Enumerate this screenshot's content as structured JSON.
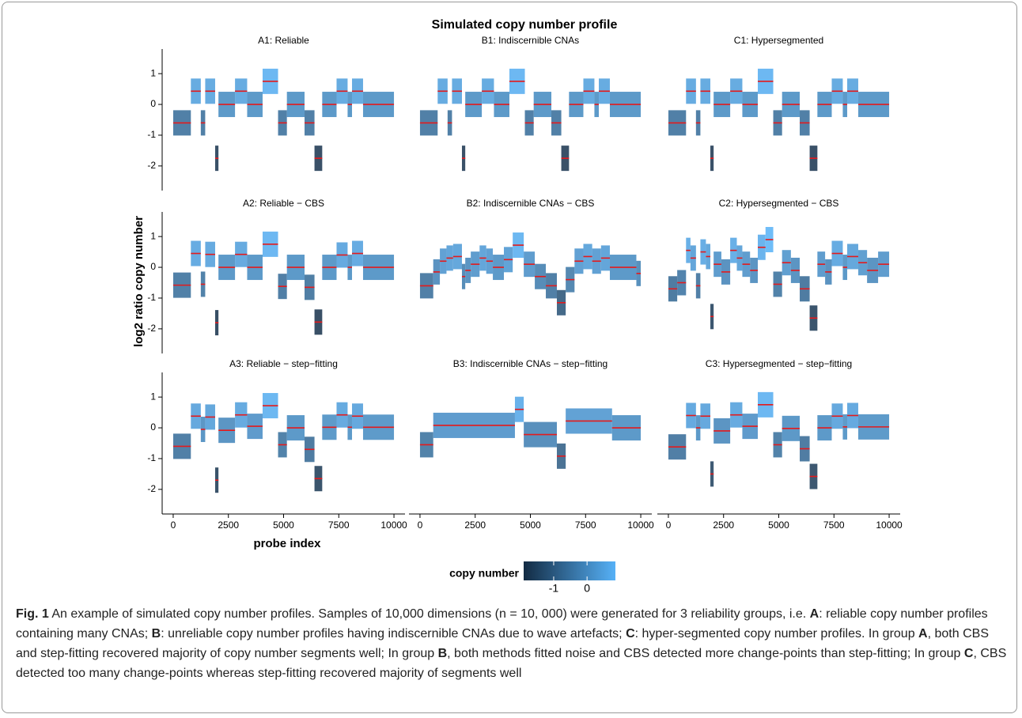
{
  "chart_data": {
    "type": "segments",
    "title": "Simulated copy number profile",
    "x_label": "probe index",
    "y_label": "log2 ratio copy number",
    "xlim": [
      -500,
      10500
    ],
    "xticks": [
      0,
      2500,
      5000,
      7500,
      10000
    ],
    "ylim": [
      -2.8,
      1.8
    ],
    "yticks": [
      -2,
      -1,
      0,
      1
    ],
    "segment_color": "#e41a1c",
    "colorbar": {
      "label": "copy number",
      "lim": [
        -1.9,
        0.85
      ],
      "ticks": [
        -1,
        0
      ],
      "colors": [
        "#132b43",
        "#56b1f7"
      ]
    },
    "panels": [
      {
        "title": "A1: Reliable",
        "segments": [
          {
            "x0": 0,
            "x1": 800,
            "y": -0.6
          },
          {
            "x0": 800,
            "x1": 1250,
            "y": 0.43
          },
          {
            "x0": 1250,
            "x1": 1450,
            "y": -0.6
          },
          {
            "x0": 1450,
            "x1": 1900,
            "y": 0.43
          },
          {
            "x0": 1900,
            "x1": 2050,
            "y": -1.75
          },
          {
            "x0": 2050,
            "x1": 2800,
            "y": 0
          },
          {
            "x0": 2800,
            "x1": 3350,
            "y": 0.43
          },
          {
            "x0": 3350,
            "x1": 4050,
            "y": 0
          },
          {
            "x0": 4050,
            "x1": 4750,
            "y": 0.75
          },
          {
            "x0": 4750,
            "x1": 5150,
            "y": -0.6
          },
          {
            "x0": 5150,
            "x1": 5950,
            "y": 0
          },
          {
            "x0": 5950,
            "x1": 6400,
            "y": -0.6
          },
          {
            "x0": 6400,
            "x1": 6750,
            "y": -1.75
          },
          {
            "x0": 6750,
            "x1": 7400,
            "y": 0
          },
          {
            "x0": 7400,
            "x1": 7900,
            "y": 0.43
          },
          {
            "x0": 7900,
            "x1": 8100,
            "y": 0
          },
          {
            "x0": 8100,
            "x1": 8600,
            "y": 0.43
          },
          {
            "x0": 8600,
            "x1": 10000,
            "y": 0
          }
        ]
      },
      {
        "title": "B1: Indiscernible CNAs",
        "segments": [
          {
            "x0": 0,
            "x1": 800,
            "y": -0.6
          },
          {
            "x0": 800,
            "x1": 1250,
            "y": 0.43
          },
          {
            "x0": 1250,
            "x1": 1450,
            "y": -0.6
          },
          {
            "x0": 1450,
            "x1": 1900,
            "y": 0.43
          },
          {
            "x0": 1900,
            "x1": 2050,
            "y": -1.75
          },
          {
            "x0": 2050,
            "x1": 2800,
            "y": 0
          },
          {
            "x0": 2800,
            "x1": 3350,
            "y": 0.43
          },
          {
            "x0": 3350,
            "x1": 4050,
            "y": 0
          },
          {
            "x0": 4050,
            "x1": 4750,
            "y": 0.75
          },
          {
            "x0": 4750,
            "x1": 5150,
            "y": -0.6
          },
          {
            "x0": 5150,
            "x1": 5950,
            "y": 0
          },
          {
            "x0": 5950,
            "x1": 6400,
            "y": -0.6
          },
          {
            "x0": 6400,
            "x1": 6750,
            "y": -1.75
          },
          {
            "x0": 6750,
            "x1": 7400,
            "y": 0
          },
          {
            "x0": 7400,
            "x1": 7900,
            "y": 0.43
          },
          {
            "x0": 7900,
            "x1": 8100,
            "y": 0
          },
          {
            "x0": 8100,
            "x1": 8600,
            "y": 0.43
          },
          {
            "x0": 8600,
            "x1": 10000,
            "y": 0
          }
        ]
      },
      {
        "title": "C1: Hypersegmented",
        "segments": [
          {
            "x0": 0,
            "x1": 800,
            "y": -0.6
          },
          {
            "x0": 800,
            "x1": 1250,
            "y": 0.43
          },
          {
            "x0": 1250,
            "x1": 1450,
            "y": -0.6
          },
          {
            "x0": 1450,
            "x1": 1900,
            "y": 0.43
          },
          {
            "x0": 1900,
            "x1": 2050,
            "y": -1.75
          },
          {
            "x0": 2050,
            "x1": 2800,
            "y": 0
          },
          {
            "x0": 2800,
            "x1": 3350,
            "y": 0.43
          },
          {
            "x0": 3350,
            "x1": 4050,
            "y": 0
          },
          {
            "x0": 4050,
            "x1": 4750,
            "y": 0.75
          },
          {
            "x0": 4750,
            "x1": 5150,
            "y": -0.6
          },
          {
            "x0": 5150,
            "x1": 5950,
            "y": 0
          },
          {
            "x0": 5950,
            "x1": 6400,
            "y": -0.6
          },
          {
            "x0": 6400,
            "x1": 6750,
            "y": -1.75
          },
          {
            "x0": 6750,
            "x1": 7400,
            "y": 0
          },
          {
            "x0": 7400,
            "x1": 7900,
            "y": 0.43
          },
          {
            "x0": 7900,
            "x1": 8100,
            "y": 0
          },
          {
            "x0": 8100,
            "x1": 8600,
            "y": 0.43
          },
          {
            "x0": 8600,
            "x1": 10000,
            "y": 0
          }
        ]
      },
      {
        "title": "A2: Reliable − CBS",
        "segments": [
          {
            "x0": 0,
            "x1": 800,
            "y": -0.58
          },
          {
            "x0": 800,
            "x1": 1250,
            "y": 0.45
          },
          {
            "x0": 1250,
            "x1": 1450,
            "y": -0.55
          },
          {
            "x0": 1450,
            "x1": 1900,
            "y": 0.42
          },
          {
            "x0": 1900,
            "x1": 2050,
            "y": -1.8
          },
          {
            "x0": 2050,
            "x1": 2800,
            "y": 0
          },
          {
            "x0": 2800,
            "x1": 3350,
            "y": 0.42
          },
          {
            "x0": 3350,
            "x1": 4050,
            "y": 0
          },
          {
            "x0": 4050,
            "x1": 4750,
            "y": 0.75
          },
          {
            "x0": 4750,
            "x1": 5150,
            "y": -0.62
          },
          {
            "x0": 5150,
            "x1": 5950,
            "y": 0
          },
          {
            "x0": 5950,
            "x1": 6400,
            "y": -0.65
          },
          {
            "x0": 6400,
            "x1": 6750,
            "y": -1.78
          },
          {
            "x0": 6750,
            "x1": 7400,
            "y": 0
          },
          {
            "x0": 7400,
            "x1": 7900,
            "y": 0.4
          },
          {
            "x0": 7900,
            "x1": 8100,
            "y": 0
          },
          {
            "x0": 8100,
            "x1": 8600,
            "y": 0.45
          },
          {
            "x0": 8600,
            "x1": 10000,
            "y": 0
          }
        ]
      },
      {
        "title": "B2: Indiscernible CNAs − CBS",
        "segments": [
          {
            "x0": 0,
            "x1": 600,
            "y": -0.6
          },
          {
            "x0": 600,
            "x1": 900,
            "y": -0.15
          },
          {
            "x0": 900,
            "x1": 1200,
            "y": 0.2
          },
          {
            "x0": 1200,
            "x1": 1500,
            "y": 0.3
          },
          {
            "x0": 1500,
            "x1": 1900,
            "y": 0.35
          },
          {
            "x0": 1900,
            "x1": 2050,
            "y": -0.3
          },
          {
            "x0": 2050,
            "x1": 2300,
            "y": -0.1
          },
          {
            "x0": 2300,
            "x1": 2700,
            "y": 0.1
          },
          {
            "x0": 2700,
            "x1": 3000,
            "y": 0.3
          },
          {
            "x0": 3000,
            "x1": 3300,
            "y": 0.2
          },
          {
            "x0": 3300,
            "x1": 3800,
            "y": 0
          },
          {
            "x0": 3800,
            "x1": 4200,
            "y": 0.25
          },
          {
            "x0": 4200,
            "x1": 4700,
            "y": 0.72
          },
          {
            "x0": 4700,
            "x1": 5200,
            "y": 0.1
          },
          {
            "x0": 5200,
            "x1": 5700,
            "y": -0.3
          },
          {
            "x0": 5700,
            "x1": 6200,
            "y": -0.6
          },
          {
            "x0": 6200,
            "x1": 6600,
            "y": -1.15
          },
          {
            "x0": 6600,
            "x1": 7000,
            "y": -0.4
          },
          {
            "x0": 7000,
            "x1": 7400,
            "y": 0.2
          },
          {
            "x0": 7400,
            "x1": 7800,
            "y": 0.35
          },
          {
            "x0": 7800,
            "x1": 8200,
            "y": 0.2
          },
          {
            "x0": 8200,
            "x1": 8600,
            "y": 0.3
          },
          {
            "x0": 8600,
            "x1": 9800,
            "y": 0
          },
          {
            "x0": 9800,
            "x1": 10000,
            "y": -0.2
          }
        ]
      },
      {
        "title": "C2: Hypersegmented − CBS",
        "segments": [
          {
            "x0": 0,
            "x1": 400,
            "y": -0.7
          },
          {
            "x0": 400,
            "x1": 800,
            "y": -0.5
          },
          {
            "x0": 800,
            "x1": 1000,
            "y": 0.55
          },
          {
            "x0": 1000,
            "x1": 1250,
            "y": 0.3
          },
          {
            "x0": 1250,
            "x1": 1450,
            "y": -0.6
          },
          {
            "x0": 1450,
            "x1": 1700,
            "y": 0.5
          },
          {
            "x0": 1700,
            "x1": 1900,
            "y": 0.35
          },
          {
            "x0": 1900,
            "x1": 2050,
            "y": -1.6
          },
          {
            "x0": 2050,
            "x1": 2400,
            "y": 0.1
          },
          {
            "x0": 2400,
            "x1": 2800,
            "y": -0.15
          },
          {
            "x0": 2800,
            "x1": 3100,
            "y": 0.55
          },
          {
            "x0": 3100,
            "x1": 3350,
            "y": 0.3
          },
          {
            "x0": 3350,
            "x1": 3700,
            "y": 0.1
          },
          {
            "x0": 3700,
            "x1": 4050,
            "y": -0.1
          },
          {
            "x0": 4050,
            "x1": 4400,
            "y": 0.65
          },
          {
            "x0": 4400,
            "x1": 4750,
            "y": 0.9
          },
          {
            "x0": 4750,
            "x1": 5150,
            "y": -0.55
          },
          {
            "x0": 5150,
            "x1": 5550,
            "y": 0.15
          },
          {
            "x0": 5550,
            "x1": 5950,
            "y": -0.1
          },
          {
            "x0": 5950,
            "x1": 6400,
            "y": -0.7
          },
          {
            "x0": 6400,
            "x1": 6750,
            "y": -1.65
          },
          {
            "x0": 6750,
            "x1": 7100,
            "y": 0.1
          },
          {
            "x0": 7100,
            "x1": 7400,
            "y": -0.15
          },
          {
            "x0": 7400,
            "x1": 7900,
            "y": 0.45
          },
          {
            "x0": 7900,
            "x1": 8100,
            "y": 0
          },
          {
            "x0": 8100,
            "x1": 8600,
            "y": 0.35
          },
          {
            "x0": 8600,
            "x1": 9000,
            "y": 0.15
          },
          {
            "x0": 9000,
            "x1": 9500,
            "y": -0.1
          },
          {
            "x0": 9500,
            "x1": 10000,
            "y": 0.1
          }
        ]
      },
      {
        "title": "A3: Reliable − step−fitting",
        "segments": [
          {
            "x0": 0,
            "x1": 800,
            "y": -0.6
          },
          {
            "x0": 800,
            "x1": 1250,
            "y": 0.38
          },
          {
            "x0": 1250,
            "x1": 1450,
            "y": -0.05
          },
          {
            "x0": 1450,
            "x1": 1900,
            "y": 0.35
          },
          {
            "x0": 1900,
            "x1": 2050,
            "y": -1.7
          },
          {
            "x0": 2050,
            "x1": 2800,
            "y": -0.08
          },
          {
            "x0": 2800,
            "x1": 3350,
            "y": 0.42
          },
          {
            "x0": 3350,
            "x1": 4050,
            "y": 0.05
          },
          {
            "x0": 4050,
            "x1": 4750,
            "y": 0.72
          },
          {
            "x0": 4750,
            "x1": 5150,
            "y": -0.55
          },
          {
            "x0": 5150,
            "x1": 5950,
            "y": 0
          },
          {
            "x0": 5950,
            "x1": 6400,
            "y": -0.7
          },
          {
            "x0": 6400,
            "x1": 6750,
            "y": -1.65
          },
          {
            "x0": 6750,
            "x1": 7400,
            "y": 0.02
          },
          {
            "x0": 7400,
            "x1": 7900,
            "y": 0.42
          },
          {
            "x0": 7900,
            "x1": 8100,
            "y": 0.02
          },
          {
            "x0": 8100,
            "x1": 8600,
            "y": 0.38
          },
          {
            "x0": 8600,
            "x1": 10000,
            "y": 0.02
          }
        ]
      },
      {
        "title": "B3: Indiscernible CNAs − step−fitting",
        "segments": [
          {
            "x0": 0,
            "x1": 600,
            "y": -0.55
          },
          {
            "x0": 600,
            "x1": 4300,
            "y": 0.08
          },
          {
            "x0": 4300,
            "x1": 4700,
            "y": 0.6
          },
          {
            "x0": 4700,
            "x1": 6200,
            "y": -0.22
          },
          {
            "x0": 6200,
            "x1": 6600,
            "y": -0.92
          },
          {
            "x0": 6600,
            "x1": 8700,
            "y": 0.22
          },
          {
            "x0": 8700,
            "x1": 10000,
            "y": 0
          }
        ]
      },
      {
        "title": "C3: Hypersegmented − step−fitting",
        "segments": [
          {
            "x0": 0,
            "x1": 800,
            "y": -0.62
          },
          {
            "x0": 800,
            "x1": 1250,
            "y": 0.4
          },
          {
            "x0": 1250,
            "x1": 1450,
            "y": 0
          },
          {
            "x0": 1450,
            "x1": 1900,
            "y": 0.38
          },
          {
            "x0": 1900,
            "x1": 2050,
            "y": -1.5
          },
          {
            "x0": 2050,
            "x1": 2800,
            "y": -0.1
          },
          {
            "x0": 2800,
            "x1": 3350,
            "y": 0.42
          },
          {
            "x0": 3350,
            "x1": 4050,
            "y": 0.05
          },
          {
            "x0": 4050,
            "x1": 4750,
            "y": 0.75
          },
          {
            "x0": 4750,
            "x1": 5150,
            "y": -0.55
          },
          {
            "x0": 5150,
            "x1": 5950,
            "y": -0.02
          },
          {
            "x0": 5950,
            "x1": 6400,
            "y": -0.68
          },
          {
            "x0": 6400,
            "x1": 6750,
            "y": -1.58
          },
          {
            "x0": 6750,
            "x1": 7400,
            "y": 0
          },
          {
            "x0": 7400,
            "x1": 7900,
            "y": 0.38
          },
          {
            "x0": 7900,
            "x1": 8100,
            "y": 0.03
          },
          {
            "x0": 8100,
            "x1": 8600,
            "y": 0.4
          },
          {
            "x0": 8600,
            "x1": 10000,
            "y": 0.03
          }
        ]
      }
    ]
  },
  "caption": [
    {
      "text": "Fig. 1",
      "bold": true
    },
    {
      "text": " An example of simulated copy number profiles. Samples of 10,000 dimensions (n = 10, 000) were generated for 3 reliability groups, i.e. ",
      "bold": false
    },
    {
      "text": "A",
      "bold": true
    },
    {
      "text": ": reliable copy number profiles containing many CNAs; ",
      "bold": false
    },
    {
      "text": "B",
      "bold": true
    },
    {
      "text": ": unreliable copy number profiles having indiscernible CNAs due to wave artefacts; ",
      "bold": false
    },
    {
      "text": "C",
      "bold": true
    },
    {
      "text": ": hyper-segmented copy number profiles. In group ",
      "bold": false
    },
    {
      "text": "A",
      "bold": true
    },
    {
      "text": ", both CBS and step-fitting recovered majority of copy number segments well; In group ",
      "bold": false
    },
    {
      "text": "B",
      "bold": true
    },
    {
      "text": ", both methods fitted noise and CBS detected more change-points than step-fitting; In group ",
      "bold": false
    },
    {
      "text": "C",
      "bold": true
    },
    {
      "text": ", CBS detected too many change-points whereas step-fitting recovered majority of segments well",
      "bold": false
    }
  ]
}
